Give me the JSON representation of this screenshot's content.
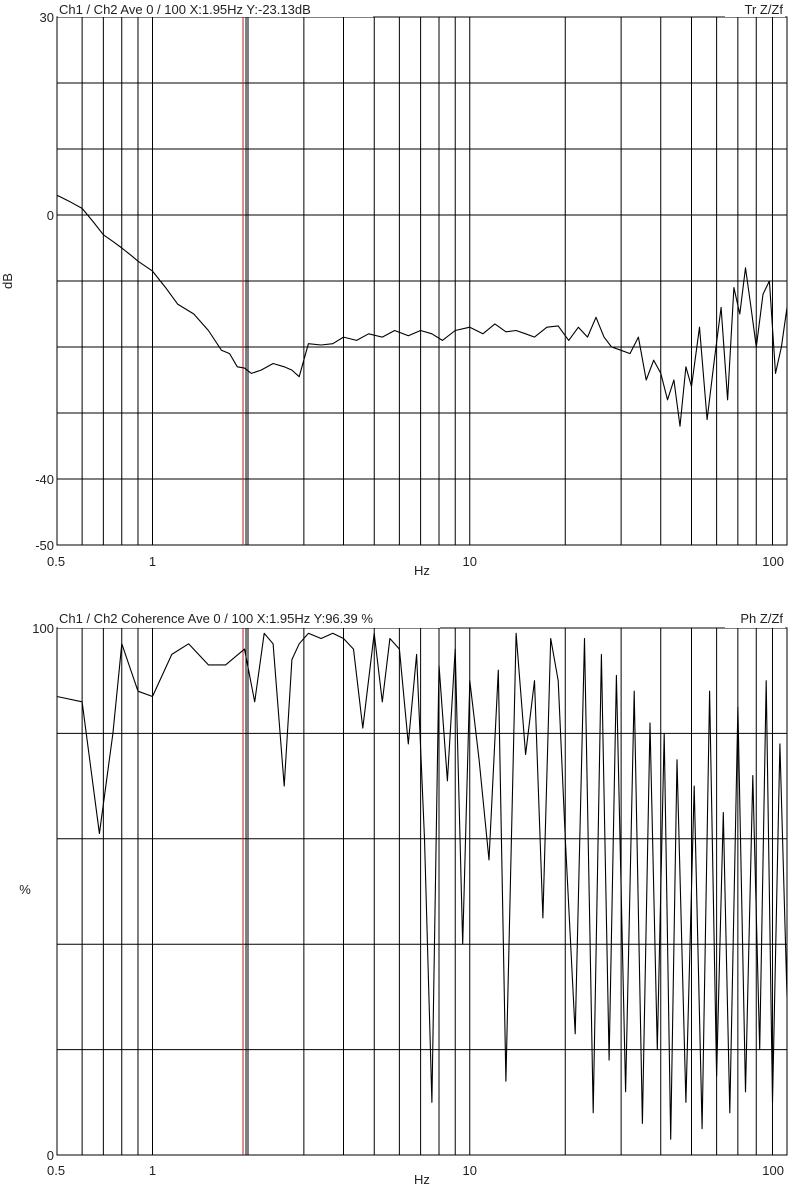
{
  "charts": [
    {
      "id": "transfer",
      "header": "Ch1 / Ch2  Ave 0 / 100  X:1.95Hz  Y:-23.13dB",
      "mode": "Tr Z/Zf",
      "ylabel": "dB",
      "xlabel": "Hz",
      "x_ticks": [
        "0.5",
        "1",
        "10",
        "100"
      ],
      "y_ticks": [
        "30",
        "0",
        "-40",
        "-50"
      ]
    },
    {
      "id": "coherence",
      "header": "Ch1 / Ch2  Coherence Ave 0 / 100  X:1.95Hz  Y:96.39 %",
      "mode": "Ph Z/Zf",
      "ylabel": "%",
      "xlabel": "Hz",
      "x_ticks": [
        "0.5",
        "1",
        "10",
        "100"
      ],
      "y_ticks": [
        "100",
        "0"
      ]
    }
  ],
  "colors": {
    "cursor": "#b22222",
    "trace": "#000000",
    "grid": "#000000"
  },
  "chart_data": [
    {
      "type": "line",
      "xscale": "log",
      "xlim": [
        0.5,
        100
      ],
      "ylim": [
        -50,
        30
      ],
      "grid": true,
      "cursor_x": 1.95,
      "cursor_y": -23.13,
      "series": [
        {
          "x": [
            0.5,
            0.55,
            0.6,
            0.65,
            0.7,
            0.75,
            0.8,
            0.85,
            0.9,
            1.0,
            1.1,
            1.2,
            1.35,
            1.5,
            1.65,
            1.75,
            1.85,
            1.95,
            2.05,
            2.2,
            2.4,
            2.6,
            2.75,
            2.9,
            3.1,
            3.4,
            3.7,
            4.0,
            4.4,
            4.8,
            5.3,
            5.8,
            6.4,
            7.0,
            7.6,
            8.2,
            9.0,
            10.0,
            11.0,
            12.0,
            13.0,
            14.0,
            15.0,
            16.0,
            17.5,
            19.0,
            20.5,
            22.0,
            23.5,
            25.0,
            26.5,
            28.0,
            30.0,
            32.0,
            34.0,
            36.0,
            38.0,
            40.0,
            42.0,
            44.0,
            46.0,
            48.0,
            50.0,
            53.0,
            56.0,
            59.0,
            62.0,
            65.0,
            68.0,
            71.0,
            74.0,
            77.0,
            80.0,
            84.0,
            88.0,
            92.0,
            96.0,
            100.0
          ],
          "y": [
            3,
            2,
            1,
            -1,
            -3,
            -4,
            -5,
            -6,
            -7,
            -8.5,
            -11,
            -13.5,
            -15,
            -17.5,
            -20.5,
            -21,
            -23,
            -23.2,
            -24,
            -23.5,
            -22.5,
            -23,
            -23.5,
            -24.5,
            -19.5,
            -19.7,
            -19.5,
            -18.5,
            -19,
            -18,
            -18.5,
            -17.5,
            -18.3,
            -17.5,
            -18,
            -19,
            -17.5,
            -17,
            -18,
            -16.5,
            -17.7,
            -17.5,
            -18,
            -18.5,
            -17,
            -16.8,
            -19,
            -17,
            -18.5,
            -15.5,
            -18.5,
            -20,
            -20.5,
            -21,
            -18.5,
            -25,
            -22,
            -24,
            -28,
            -25,
            -32,
            -23,
            -26,
            -17,
            -31,
            -22,
            -14,
            -28,
            -11,
            -15,
            -8,
            -14,
            -20,
            -12,
            -10,
            -24,
            -20,
            -14
          ]
        }
      ]
    },
    {
      "type": "line",
      "xscale": "log",
      "xlim": [
        0.5,
        100
      ],
      "ylim": [
        0,
        100
      ],
      "grid": true,
      "cursor_x": 1.95,
      "cursor_y": 96.39,
      "series": [
        {
          "x": [
            0.5,
            0.6,
            0.68,
            0.75,
            0.8,
            0.9,
            1.0,
            1.15,
            1.3,
            1.5,
            1.7,
            1.95,
            2.1,
            2.25,
            2.4,
            2.6,
            2.75,
            2.9,
            3.1,
            3.4,
            3.7,
            4.0,
            4.3,
            4.6,
            5.0,
            5.3,
            5.6,
            6.0,
            6.4,
            6.8,
            7.2,
            7.6,
            8.0,
            8.5,
            9.0,
            9.5,
            10.0,
            10.7,
            11.5,
            12.3,
            13.0,
            14.0,
            15.0,
            16.0,
            17.0,
            18.0,
            19.0,
            20.0,
            21.5,
            23.0,
            24.5,
            26.0,
            27.5,
            29.0,
            31.0,
            33.0,
            35.0,
            37.0,
            39.0,
            41.0,
            43.0,
            45.0,
            48.0,
            51.0,
            54.0,
            57.0,
            60.0,
            63.0,
            66.0,
            70.0,
            74.0,
            78.0,
            82.0,
            86.0,
            90.0,
            95.0,
            100.0
          ],
          "y": [
            87,
            86,
            61,
            80,
            97,
            88,
            87,
            95,
            97,
            93,
            93,
            96,
            86,
            99,
            97,
            70,
            94,
            97,
            99,
            98,
            99,
            98,
            96,
            81,
            99,
            86,
            98,
            96,
            78,
            95,
            60,
            10,
            93,
            71,
            96,
            40,
            90,
            75,
            56,
            92,
            14,
            99,
            76,
            90,
            45,
            98,
            90,
            60,
            23,
            98,
            8,
            95,
            18,
            91,
            12,
            88,
            6,
            82,
            20,
            80,
            3,
            75,
            10,
            70,
            5,
            88,
            15,
            65,
            8,
            85,
            12,
            72,
            20,
            90,
            10,
            78,
            30
          ]
        }
      ]
    }
  ]
}
